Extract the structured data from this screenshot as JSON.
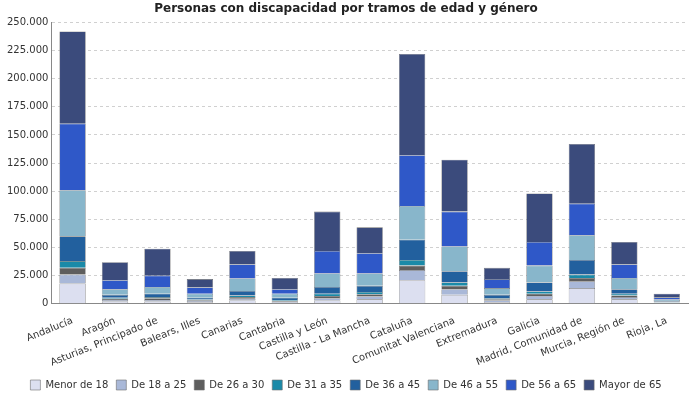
{
  "chart_data": {
    "type": "bar",
    "title": "Personas con discapacidad por tramos de edad y género",
    "stacked": true,
    "grid": true,
    "legend": "bottom",
    "categories": [
      "Andalucía",
      "Aragón",
      "Asturias, Principado de",
      "Balears, Illes",
      "Canarias",
      "Cantabria",
      "Castilla y León",
      "Castilla - La Mancha",
      "Cataluña",
      "Comunitat Valenciana",
      "Extremadura",
      "Galicia",
      "Madrid, Comunidad de",
      "Murcia, Región de",
      "Rioja, La"
    ],
    "ylim": [
      0,
      250000
    ],
    "yticks": [
      {
        "value": 0,
        "label": "0"
      },
      {
        "value": 25000,
        "label": "25.000"
      },
      {
        "value": 50000,
        "label": "50.000"
      },
      {
        "value": 75000,
        "label": "75.000"
      },
      {
        "value": 100000,
        "label": "100.000"
      },
      {
        "value": 125000,
        "label": "125.000"
      },
      {
        "value": 150000,
        "label": "150.000"
      },
      {
        "value": 175000,
        "label": "175.000"
      },
      {
        "value": 200000,
        "label": "200.000"
      },
      {
        "value": 225000,
        "label": "225.000"
      },
      {
        "value": 250000,
        "label": "250.000"
      }
    ],
    "series": [
      {
        "name": "Menor de 18",
        "color": "#dcdff0",
        "values": [
          18000,
          2000,
          2000,
          1500,
          3000,
          1000,
          3000,
          4000,
          21000,
          8000,
          1500,
          4000,
          14000,
          4000,
          500
        ]
      },
      {
        "name": "De 18 a 25",
        "color": "#a9b8d8",
        "values": [
          8000,
          1500,
          1500,
          1000,
          1500,
          800,
          2000,
          2500,
          9000,
          5000,
          1500,
          3000,
          6000,
          2000,
          400
        ]
      },
      {
        "name": "De 26 a 30",
        "color": "#5e5e5e",
        "values": [
          6000,
          1000,
          1500,
          700,
          1500,
          800,
          2000,
          2000,
          4000,
          3000,
          1000,
          2000,
          3000,
          1500,
          300
        ]
      },
      {
        "name": "De 31 a 35",
        "color": "#1a8aa8",
        "values": [
          6000,
          1000,
          1000,
          700,
          1500,
          700,
          2000,
          2000,
          5000,
          3000,
          1000,
          2000,
          3000,
          1500,
          300
        ]
      },
      {
        "name": "De 36 a 45",
        "color": "#22609e",
        "values": [
          22000,
          2500,
          3000,
          1600,
          4000,
          2200,
          6000,
          5500,
          18000,
          10000,
          3000,
          8000,
          13000,
          4000,
          800
        ]
      },
      {
        "name": "De 46 a 55",
        "color": "#88b6cb",
        "values": [
          41000,
          5000,
          6000,
          3500,
          11000,
          3500,
          12000,
          11000,
          30000,
          22000,
          6000,
          15000,
          22000,
          10000,
          1500
        ]
      },
      {
        "name": "De 56 a 65",
        "color": "#2f58c8",
        "values": [
          59000,
          8000,
          10000,
          5500,
          12500,
          4000,
          20000,
          18000,
          45000,
          31000,
          8000,
          21000,
          28000,
          12000,
          2000
        ]
      },
      {
        "name": "Mayor de 65",
        "color": "#3b4b7c",
        "values": [
          82000,
          16000,
          24000,
          7500,
          12000,
          10000,
          35000,
          23000,
          90000,
          46000,
          10000,
          43000,
          53000,
          20000,
          3200
        ]
      }
    ]
  }
}
